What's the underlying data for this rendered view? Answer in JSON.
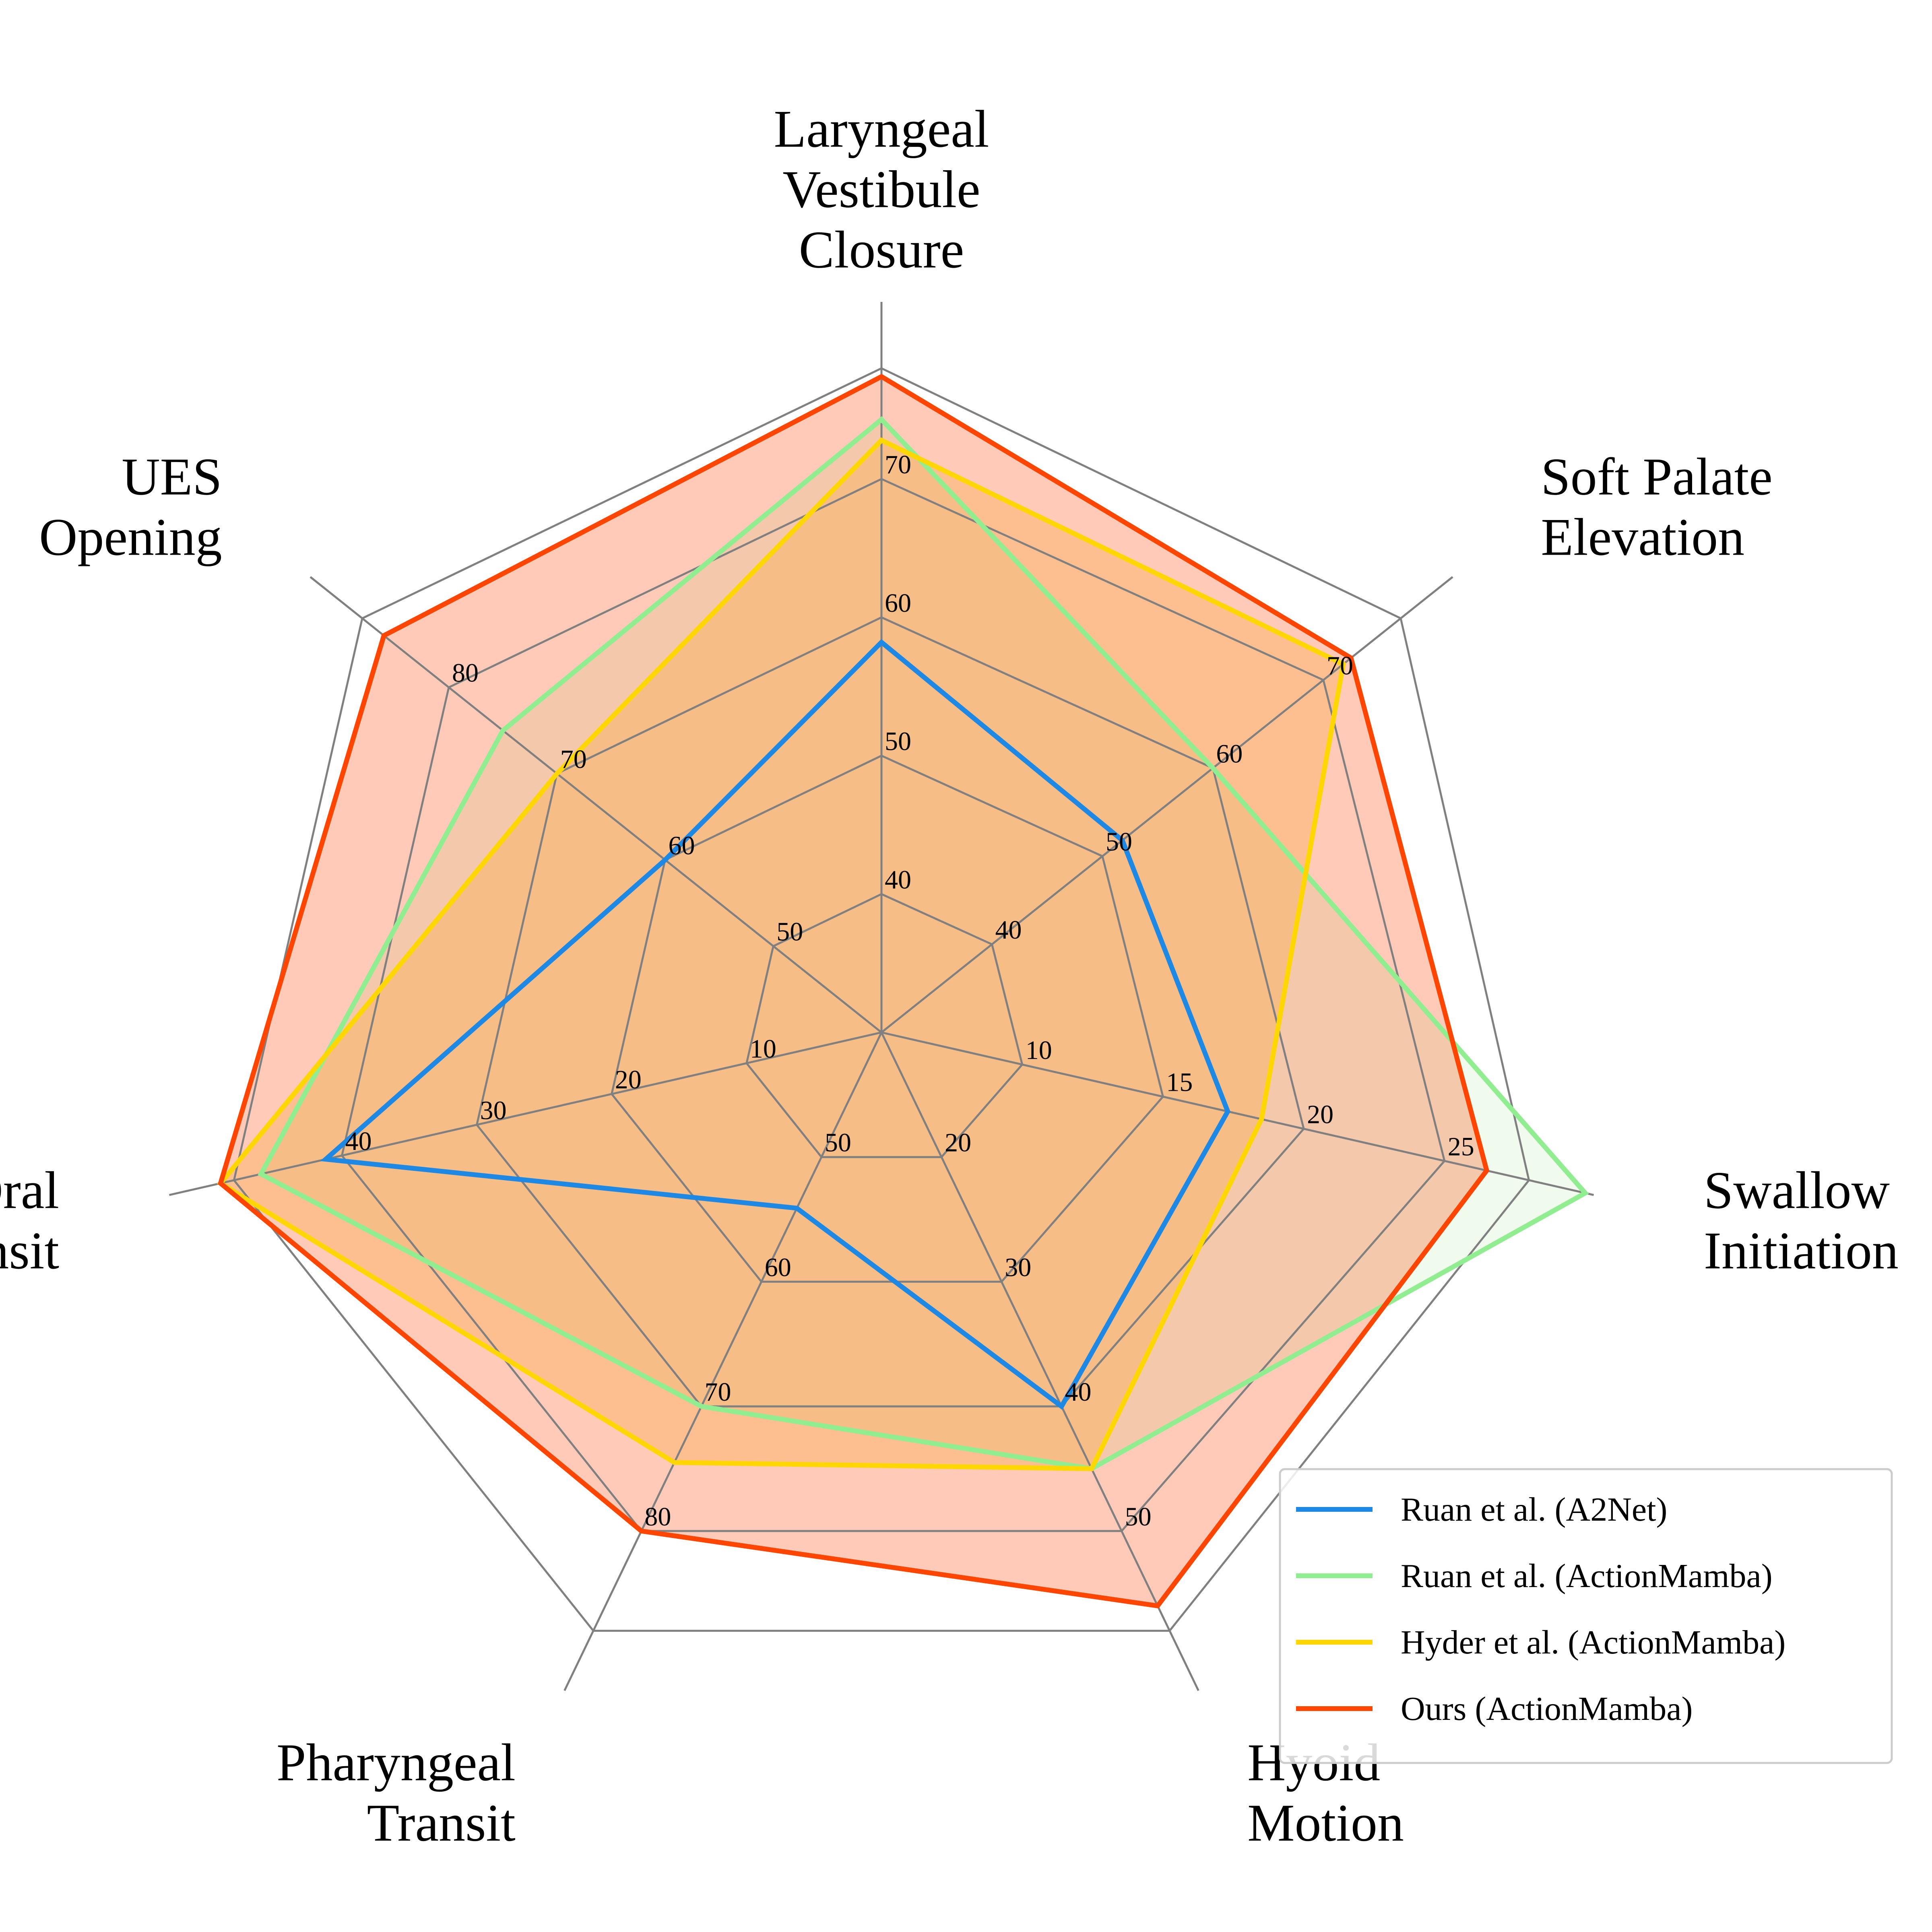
{
  "chart_data": {
    "type": "radar",
    "axes": [
      {
        "label": [
          "Laryngeal",
          "Vestibule",
          "Closure"
        ],
        "ticks": [
          "40",
          "50",
          "60",
          "70"
        ],
        "tick_values": [
          40,
          50,
          60,
          70
        ],
        "range": [
          30,
          78
        ]
      },
      {
        "label": [
          "Soft Palate",
          "Elevation"
        ],
        "ticks": [
          "40",
          "50",
          "60",
          "70"
        ],
        "tick_values": [
          40,
          50,
          60,
          70
        ],
        "range": [
          30,
          77
        ]
      },
      {
        "label": [
          "Swallow",
          "Initiation"
        ],
        "ticks": [
          "10",
          "15",
          "20",
          "25"
        ],
        "tick_values": [
          10,
          15,
          20,
          25
        ],
        "range": [
          5,
          28
        ]
      },
      {
        "label": [
          "Hyoid",
          "Motion"
        ],
        "ticks": [
          "20",
          "30",
          "40",
          "50"
        ],
        "tick_values": [
          20,
          30,
          40,
          50
        ],
        "range": [
          10,
          58
        ]
      },
      {
        "label": [
          "Pharyngeal",
          "Transit"
        ],
        "ticks": [
          "50",
          "60",
          "70",
          "80"
        ],
        "tick_values": [
          50,
          60,
          70,
          80
        ],
        "range": [
          40,
          88
        ]
      },
      {
        "label": [
          "Oral",
          "Transit"
        ],
        "ticks": [
          "10",
          "20",
          "30",
          "40"
        ],
        "tick_values": [
          10,
          20,
          30,
          40
        ],
        "range": [
          0,
          48
        ]
      },
      {
        "label": [
          "UES",
          "Opening"
        ],
        "ticks": [
          "50",
          "60",
          "70",
          "80"
        ],
        "tick_values": [
          50,
          60,
          70,
          80
        ],
        "range": [
          40,
          88
        ]
      }
    ],
    "series": [
      {
        "name": "Ruan et al. (A2Net)",
        "color": "#1e88e5",
        "fill": "none",
        "values": [
          58.2,
          51.8,
          17.3,
          40.0,
          54.1,
          41.2,
          60.0
        ]
      },
      {
        "name": "Ruan et al. (ActionMamba)",
        "color": "#90ee90",
        "fill": "#c8f0c0",
        "values": [
          74.3,
          60.0,
          30.0,
          45.0,
          70.0,
          46.0,
          75.0
        ]
      },
      {
        "name": "Hyder et al. (ActionMamba)",
        "color": "#ffd700",
        "fill": "#fcc43a",
        "values": [
          72.8,
          71.8,
          18.5,
          45.0,
          74.5,
          49.0,
          70.0
        ]
      },
      {
        "name": "Ours (ActionMamba)",
        "color": "#ff4500",
        "fill": "#ff4500",
        "values": [
          77.4,
          72.5,
          26.5,
          56.0,
          80.0,
          49.0,
          86.0
        ]
      }
    ],
    "grid": true,
    "legend_position": "bottom-right"
  }
}
